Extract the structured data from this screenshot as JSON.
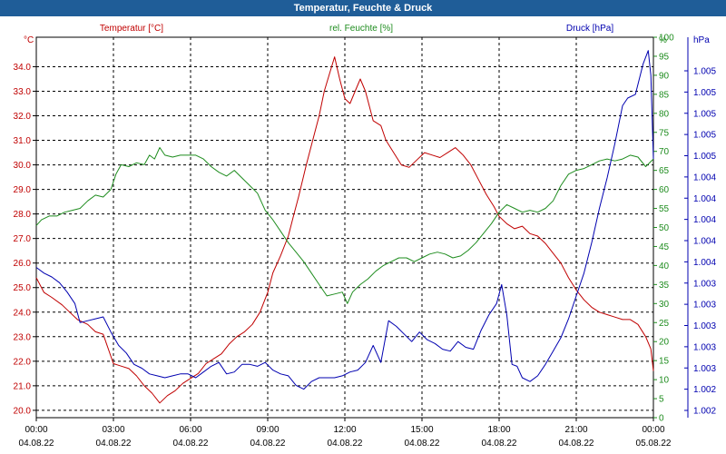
{
  "window": {
    "title": "Temperatur, Feuchte & Druck"
  },
  "chart_data": {
    "type": "line",
    "title": "Temperatur, Feuchte & Druck",
    "grid": true,
    "x_ticks": [
      {
        "time": "00:00",
        "date": "04.08.22"
      },
      {
        "time": "03:00",
        "date": "04.08.22"
      },
      {
        "time": "06:00",
        "date": "04.08.22"
      },
      {
        "time": "09:00",
        "date": "04.08.22"
      },
      {
        "time": "12:00",
        "date": "04.08.22"
      },
      {
        "time": "15:00",
        "date": "04.08.22"
      },
      {
        "time": "18:00",
        "date": "04.08.22"
      },
      {
        "time": "21:00",
        "date": "04.08.22"
      },
      {
        "time": "00:00",
        "date": "05.08.22"
      }
    ],
    "x_range_hours": [
      0,
      24
    ],
    "axes": {
      "temperature": {
        "unit": "°C",
        "range": [
          19.7,
          35.2
        ],
        "ticks": [
          34.0,
          33.0,
          32.0,
          31.0,
          30.0,
          29.0,
          28.0,
          27.0,
          26.0,
          25.0,
          24.0,
          23.0,
          22.0,
          21.0,
          20.0
        ],
        "color": "#c00000"
      },
      "humidity": {
        "unit": "%",
        "range": [
          0,
          100
        ],
        "ticks": [
          100,
          95,
          90,
          85,
          80,
          75,
          70,
          65,
          60,
          55,
          50,
          45,
          40,
          35,
          30,
          25,
          20,
          15,
          10,
          5,
          0
        ],
        "color": "#1e8c1e"
      },
      "pressure": {
        "unit": "hPa",
        "ticks": [
          "1.005",
          "1.005",
          "1.005",
          "1.005",
          "1.005",
          "1.004",
          "1.004",
          "1.004",
          "1.004",
          "1.004",
          "1.003",
          "1.003",
          "1.003",
          "1.003",
          "1.003",
          "1.002",
          "1.002"
        ],
        "color": "#0000b0"
      }
    },
    "series": [
      {
        "name": "Temperatur [°C]",
        "axis": "temperature",
        "color": "#c00000",
        "points": [
          [
            0.0,
            25.4
          ],
          [
            0.3,
            24.8
          ],
          [
            0.6,
            24.6
          ],
          [
            1.0,
            24.3
          ],
          [
            1.3,
            24.0
          ],
          [
            1.6,
            23.7
          ],
          [
            2.0,
            23.5
          ],
          [
            2.3,
            23.2
          ],
          [
            2.6,
            23.1
          ],
          [
            3.0,
            21.9
          ],
          [
            3.3,
            21.8
          ],
          [
            3.6,
            21.7
          ],
          [
            3.9,
            21.4
          ],
          [
            4.2,
            21.0
          ],
          [
            4.5,
            20.7
          ],
          [
            4.8,
            20.3
          ],
          [
            5.1,
            20.6
          ],
          [
            5.4,
            20.8
          ],
          [
            5.7,
            21.1
          ],
          [
            6.0,
            21.3
          ],
          [
            6.3,
            21.5
          ],
          [
            6.6,
            21.9
          ],
          [
            6.9,
            22.1
          ],
          [
            7.2,
            22.3
          ],
          [
            7.5,
            22.7
          ],
          [
            7.8,
            23.0
          ],
          [
            8.1,
            23.2
          ],
          [
            8.4,
            23.5
          ],
          [
            8.7,
            24.0
          ],
          [
            9.0,
            24.8
          ],
          [
            9.2,
            25.6
          ],
          [
            9.5,
            26.3
          ],
          [
            9.8,
            27.1
          ],
          [
            10.0,
            27.9
          ],
          [
            10.2,
            28.7
          ],
          [
            10.5,
            30.0
          ],
          [
            10.8,
            31.2
          ],
          [
            11.0,
            32.0
          ],
          [
            11.2,
            33.0
          ],
          [
            11.4,
            33.7
          ],
          [
            11.6,
            34.4
          ],
          [
            11.8,
            33.5
          ],
          [
            12.0,
            32.7
          ],
          [
            12.2,
            32.5
          ],
          [
            12.4,
            33.0
          ],
          [
            12.6,
            33.5
          ],
          [
            12.8,
            33.0
          ],
          [
            13.1,
            31.8
          ],
          [
            13.4,
            31.6
          ],
          [
            13.6,
            31.0
          ],
          [
            13.9,
            30.5
          ],
          [
            14.2,
            30.0
          ],
          [
            14.5,
            29.9
          ],
          [
            14.8,
            30.2
          ],
          [
            15.1,
            30.5
          ],
          [
            15.4,
            30.4
          ],
          [
            15.7,
            30.3
          ],
          [
            16.0,
            30.5
          ],
          [
            16.3,
            30.7
          ],
          [
            16.6,
            30.4
          ],
          [
            16.9,
            30.0
          ],
          [
            17.2,
            29.4
          ],
          [
            17.5,
            28.8
          ],
          [
            17.8,
            28.3
          ],
          [
            18.0,
            27.9
          ],
          [
            18.3,
            27.6
          ],
          [
            18.6,
            27.4
          ],
          [
            18.9,
            27.5
          ],
          [
            19.2,
            27.2
          ],
          [
            19.5,
            27.1
          ],
          [
            19.8,
            26.8
          ],
          [
            20.1,
            26.4
          ],
          [
            20.4,
            26.0
          ],
          [
            20.7,
            25.4
          ],
          [
            21.0,
            24.9
          ],
          [
            21.3,
            24.5
          ],
          [
            21.6,
            24.2
          ],
          [
            21.9,
            24.0
          ],
          [
            22.2,
            23.9
          ],
          [
            22.5,
            23.8
          ],
          [
            22.8,
            23.7
          ],
          [
            23.1,
            23.7
          ],
          [
            23.4,
            23.5
          ],
          [
            23.7,
            23.0
          ],
          [
            23.9,
            22.5
          ],
          [
            24.0,
            21.6
          ]
        ]
      },
      {
        "name": "rel. Feuchte [%]",
        "axis": "humidity",
        "color": "#1e8c1e",
        "points": [
          [
            0.0,
            50.5
          ],
          [
            0.2,
            52.0
          ],
          [
            0.5,
            53.0
          ],
          [
            0.8,
            53.0
          ],
          [
            1.1,
            54.0
          ],
          [
            1.4,
            54.5
          ],
          [
            1.7,
            55.0
          ],
          [
            2.0,
            57.0
          ],
          [
            2.3,
            58.5
          ],
          [
            2.6,
            58.0
          ],
          [
            2.9,
            60.0
          ],
          [
            3.1,
            64.0
          ],
          [
            3.3,
            66.5
          ],
          [
            3.6,
            66.0
          ],
          [
            3.9,
            67.0
          ],
          [
            4.2,
            66.5
          ],
          [
            4.4,
            69.0
          ],
          [
            4.6,
            68.0
          ],
          [
            4.8,
            71.0
          ],
          [
            5.0,
            69.0
          ],
          [
            5.3,
            68.5
          ],
          [
            5.6,
            69.0
          ],
          [
            5.9,
            69.0
          ],
          [
            6.2,
            69.0
          ],
          [
            6.5,
            68.0
          ],
          [
            6.8,
            66.0
          ],
          [
            7.1,
            64.5
          ],
          [
            7.4,
            63.5
          ],
          [
            7.7,
            65.0
          ],
          [
            8.0,
            63.0
          ],
          [
            8.3,
            61.0
          ],
          [
            8.6,
            59.0
          ],
          [
            8.9,
            54.5
          ],
          [
            9.2,
            52.0
          ],
          [
            9.5,
            49.0
          ],
          [
            9.8,
            46.0
          ],
          [
            10.1,
            43.5
          ],
          [
            10.4,
            41.0
          ],
          [
            10.7,
            38.0
          ],
          [
            11.0,
            35.0
          ],
          [
            11.3,
            32.0
          ],
          [
            11.6,
            32.5
          ],
          [
            11.9,
            33.0
          ],
          [
            12.1,
            30.0
          ],
          [
            12.3,
            33.0
          ],
          [
            12.6,
            35.0
          ],
          [
            12.9,
            36.5
          ],
          [
            13.2,
            38.5
          ],
          [
            13.5,
            40.0
          ],
          [
            13.8,
            41.0
          ],
          [
            14.1,
            42.0
          ],
          [
            14.4,
            42.0
          ],
          [
            14.7,
            41.0
          ],
          [
            15.0,
            42.0
          ],
          [
            15.3,
            43.0
          ],
          [
            15.6,
            43.5
          ],
          [
            15.9,
            43.0
          ],
          [
            16.2,
            42.0
          ],
          [
            16.5,
            42.5
          ],
          [
            16.8,
            44.0
          ],
          [
            17.1,
            46.0
          ],
          [
            17.4,
            48.5
          ],
          [
            17.7,
            51.0
          ],
          [
            18.0,
            54.0
          ],
          [
            18.3,
            56.0
          ],
          [
            18.6,
            55.0
          ],
          [
            18.9,
            54.0
          ],
          [
            19.2,
            54.5
          ],
          [
            19.5,
            54.0
          ],
          [
            19.8,
            55.0
          ],
          [
            20.1,
            57.0
          ],
          [
            20.4,
            61.0
          ],
          [
            20.7,
            64.0
          ],
          [
            21.0,
            65.0
          ],
          [
            21.3,
            65.5
          ],
          [
            21.6,
            66.5
          ],
          [
            21.9,
            67.5
          ],
          [
            22.2,
            68.0
          ],
          [
            22.5,
            67.5
          ],
          [
            22.8,
            68.0
          ],
          [
            23.1,
            69.0
          ],
          [
            23.4,
            68.5
          ],
          [
            23.7,
            66.0
          ],
          [
            24.0,
            68.0
          ]
        ]
      },
      {
        "name": "Druck [hPa]",
        "axis": "pressure",
        "color": "#0000b0",
        "points": [
          [
            0.0,
            39.5
          ],
          [
            0.3,
            38.0
          ],
          [
            0.6,
            37.0
          ],
          [
            0.9,
            35.5
          ],
          [
            1.2,
            33.0
          ],
          [
            1.5,
            30.0
          ],
          [
            1.7,
            25.0
          ],
          [
            2.0,
            25.5
          ],
          [
            2.3,
            26.0
          ],
          [
            2.6,
            26.5
          ],
          [
            2.9,
            22.5
          ],
          [
            3.2,
            19.0
          ],
          [
            3.5,
            17.0
          ],
          [
            3.8,
            14.0
          ],
          [
            4.1,
            13.0
          ],
          [
            4.4,
            11.5
          ],
          [
            4.7,
            11.0
          ],
          [
            5.0,
            10.5
          ],
          [
            5.3,
            11.0
          ],
          [
            5.6,
            11.5
          ],
          [
            5.9,
            11.5
          ],
          [
            6.2,
            10.5
          ],
          [
            6.5,
            12.0
          ],
          [
            6.8,
            13.5
          ],
          [
            7.1,
            14.5
          ],
          [
            7.4,
            11.5
          ],
          [
            7.7,
            12.0
          ],
          [
            8.0,
            14.0
          ],
          [
            8.3,
            14.0
          ],
          [
            8.6,
            13.5
          ],
          [
            8.9,
            14.5
          ],
          [
            9.2,
            12.5
          ],
          [
            9.5,
            11.5
          ],
          [
            9.8,
            11.0
          ],
          [
            10.1,
            8.5
          ],
          [
            10.4,
            7.5
          ],
          [
            10.7,
            9.5
          ],
          [
            11.0,
            10.5
          ],
          [
            11.3,
            10.5
          ],
          [
            11.6,
            10.5
          ],
          [
            11.9,
            11.0
          ],
          [
            12.2,
            12.0
          ],
          [
            12.5,
            12.5
          ],
          [
            12.8,
            14.5
          ],
          [
            13.1,
            19.0
          ],
          [
            13.4,
            14.5
          ],
          [
            13.7,
            25.5
          ],
          [
            14.0,
            24.0
          ],
          [
            14.3,
            22.0
          ],
          [
            14.6,
            20.0
          ],
          [
            14.9,
            22.5
          ],
          [
            15.2,
            20.5
          ],
          [
            15.5,
            19.5
          ],
          [
            15.8,
            18.0
          ],
          [
            16.1,
            17.5
          ],
          [
            16.4,
            20.0
          ],
          [
            16.7,
            18.5
          ],
          [
            17.0,
            18.0
          ],
          [
            17.3,
            23.0
          ],
          [
            17.6,
            27.0
          ],
          [
            17.9,
            30.0
          ],
          [
            18.1,
            35.0
          ],
          [
            18.3,
            27.0
          ],
          [
            18.5,
            14.0
          ],
          [
            18.7,
            13.5
          ],
          [
            18.9,
            10.5
          ],
          [
            19.2,
            9.5
          ],
          [
            19.5,
            11.0
          ],
          [
            19.8,
            14.0
          ],
          [
            20.1,
            17.5
          ],
          [
            20.4,
            21.0
          ],
          [
            20.7,
            26.0
          ],
          [
            21.0,
            32.0
          ],
          [
            21.3,
            38.0
          ],
          [
            21.6,
            46.0
          ],
          [
            21.9,
            55.0
          ],
          [
            22.2,
            63.0
          ],
          [
            22.5,
            72.0
          ],
          [
            22.8,
            82.0
          ],
          [
            23.0,
            84.0
          ],
          [
            23.3,
            85.0
          ],
          [
            23.6,
            93.0
          ],
          [
            23.8,
            96.5
          ],
          [
            23.9,
            90.0
          ],
          [
            24.0,
            68.0
          ]
        ]
      }
    ]
  }
}
